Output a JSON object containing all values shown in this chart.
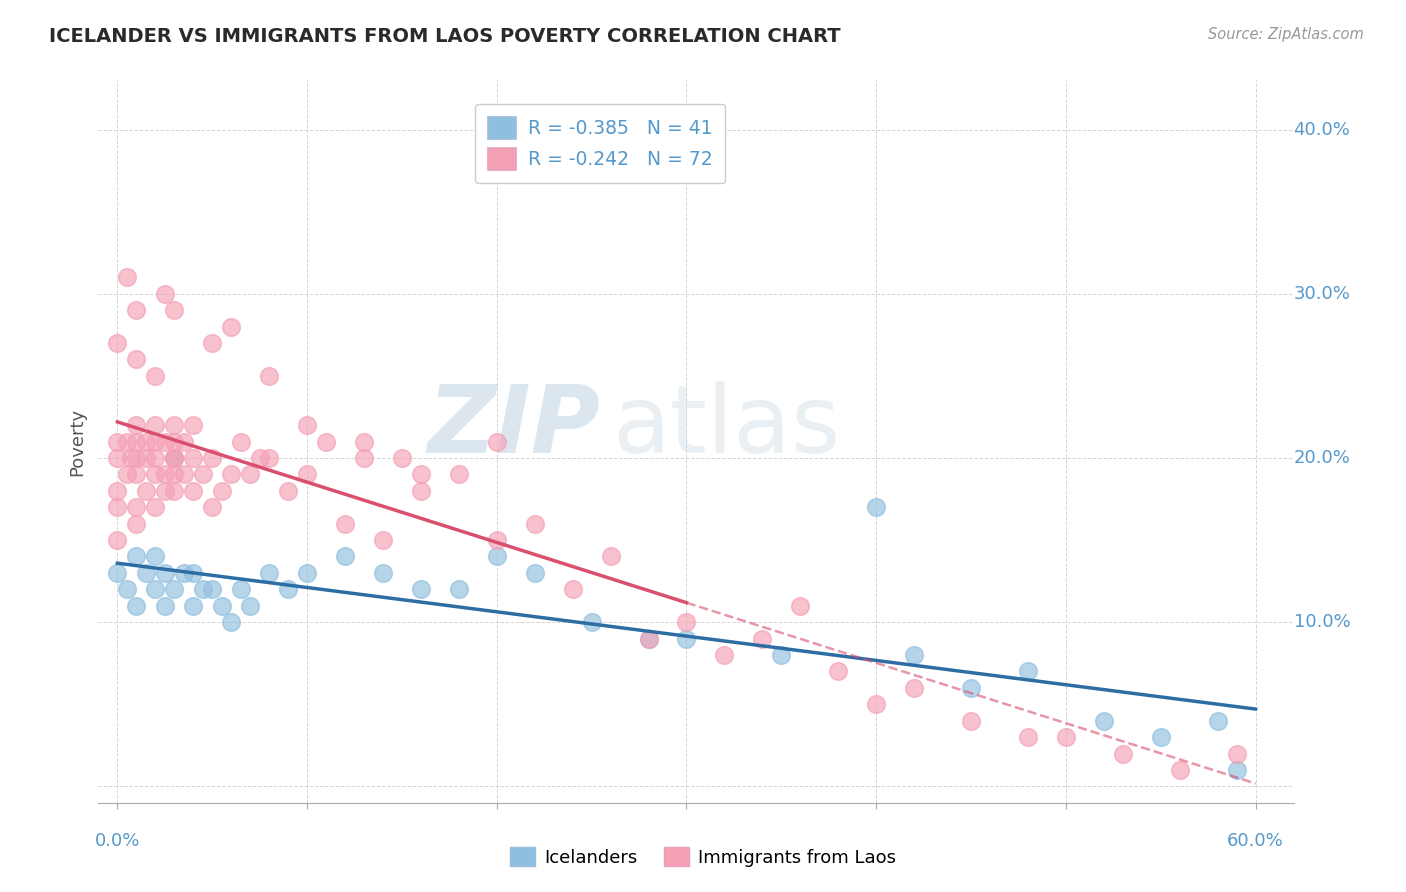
{
  "title": "ICELANDER VS IMMIGRANTS FROM LAOS POVERTY CORRELATION CHART",
  "source": "Source: ZipAtlas.com",
  "xlabel_blue": "Icelanders",
  "xlabel_pink": "Immigrants from Laos",
  "ylabel": "Poverty",
  "xlim": [
    -0.01,
    0.62
  ],
  "ylim": [
    -0.01,
    0.43
  ],
  "xtick_positions": [
    0.0,
    0.1,
    0.2,
    0.3,
    0.4,
    0.5,
    0.6
  ],
  "ytick_positions": [
    0.0,
    0.1,
    0.2,
    0.3,
    0.4
  ],
  "background_color": "#ffffff",
  "grid_color": "#cccccc",
  "blue_color": "#8fbfde",
  "pink_color": "#f4a0b5",
  "blue_line_color": "#2e6da4",
  "pink_line_color": "#d94f6e",
  "legend_text_blue": "R = -0.385   N = 41",
  "legend_text_pink": "R = -0.242   N = 72",
  "title_color": "#2a2a2a",
  "axis_label_color": "#5599cc",
  "watermark_zip": "ZIP",
  "watermark_atlas": "atlas",
  "blue_x": [
    0.0,
    0.005,
    0.01,
    0.01,
    0.015,
    0.02,
    0.02,
    0.025,
    0.025,
    0.03,
    0.03,
    0.035,
    0.04,
    0.04,
    0.045,
    0.05,
    0.055,
    0.06,
    0.065,
    0.07,
    0.08,
    0.09,
    0.1,
    0.12,
    0.14,
    0.16,
    0.18,
    0.2,
    0.22,
    0.25,
    0.28,
    0.3,
    0.35,
    0.4,
    0.42,
    0.45,
    0.48,
    0.52,
    0.55,
    0.58,
    0.59
  ],
  "blue_y": [
    0.13,
    0.12,
    0.14,
    0.11,
    0.13,
    0.12,
    0.14,
    0.11,
    0.13,
    0.2,
    0.12,
    0.13,
    0.13,
    0.11,
    0.12,
    0.12,
    0.11,
    0.1,
    0.12,
    0.11,
    0.13,
    0.12,
    0.13,
    0.14,
    0.13,
    0.12,
    0.12,
    0.14,
    0.13,
    0.1,
    0.09,
    0.09,
    0.08,
    0.17,
    0.08,
    0.06,
    0.07,
    0.04,
    0.03,
    0.04,
    0.01
  ],
  "pink_x": [
    0.0,
    0.0,
    0.0,
    0.0,
    0.0,
    0.005,
    0.005,
    0.007,
    0.01,
    0.01,
    0.01,
    0.01,
    0.01,
    0.01,
    0.015,
    0.015,
    0.015,
    0.02,
    0.02,
    0.02,
    0.02,
    0.02,
    0.025,
    0.025,
    0.025,
    0.03,
    0.03,
    0.03,
    0.03,
    0.03,
    0.03,
    0.035,
    0.035,
    0.04,
    0.04,
    0.04,
    0.045,
    0.05,
    0.05,
    0.055,
    0.06,
    0.065,
    0.07,
    0.075,
    0.08,
    0.09,
    0.1,
    0.11,
    0.12,
    0.13,
    0.14,
    0.15,
    0.16,
    0.18,
    0.2,
    0.22,
    0.24,
    0.26,
    0.28,
    0.3,
    0.32,
    0.34,
    0.36,
    0.38,
    0.4,
    0.42,
    0.45,
    0.48,
    0.5,
    0.53,
    0.56,
    0.59
  ],
  "pink_y": [
    0.2,
    0.18,
    0.21,
    0.17,
    0.15,
    0.21,
    0.19,
    0.2,
    0.2,
    0.19,
    0.21,
    0.17,
    0.22,
    0.16,
    0.2,
    0.18,
    0.21,
    0.2,
    0.21,
    0.19,
    0.22,
    0.17,
    0.19,
    0.21,
    0.18,
    0.2,
    0.19,
    0.21,
    0.2,
    0.22,
    0.18,
    0.19,
    0.21,
    0.18,
    0.2,
    0.22,
    0.19,
    0.17,
    0.2,
    0.18,
    0.19,
    0.21,
    0.19,
    0.2,
    0.2,
    0.18,
    0.19,
    0.21,
    0.16,
    0.21,
    0.15,
    0.2,
    0.18,
    0.19,
    0.15,
    0.16,
    0.12,
    0.14,
    0.09,
    0.1,
    0.08,
    0.09,
    0.11,
    0.07,
    0.05,
    0.06,
    0.04,
    0.03,
    0.03,
    0.02,
    0.01,
    0.02
  ],
  "pink_extra_x": [
    0.0,
    0.005,
    0.01,
    0.01,
    0.02,
    0.025,
    0.03,
    0.05,
    0.06,
    0.08,
    0.1,
    0.13,
    0.16,
    0.2
  ],
  "pink_extra_y": [
    0.27,
    0.31,
    0.29,
    0.26,
    0.25,
    0.3,
    0.29,
    0.27,
    0.28,
    0.25,
    0.22,
    0.2,
    0.19,
    0.21
  ]
}
